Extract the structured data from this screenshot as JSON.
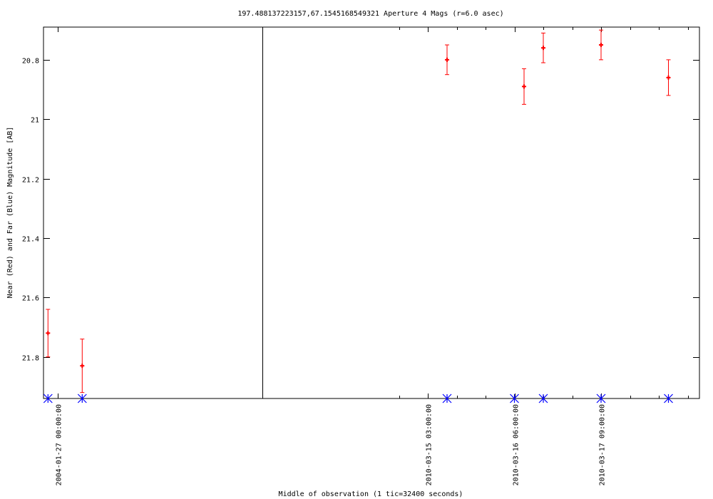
{
  "chart_data": {
    "type": "scatter",
    "title": "197.488137223157,67.1545168549321   Aperture 4 Mags (r=6.0 asec)",
    "xlabel": "Middle of observation (1 tic=32400 seconds)",
    "ylabel": "Near (Red) and Far (Blue) Magnitude [AB]",
    "y_inverted": true,
    "ylim": [
      20.69,
      21.94
    ],
    "yticks": [
      20.8,
      21,
      21.2,
      21.4,
      21.6,
      21.8
    ],
    "ytick_labels": [
      "20.8",
      "21",
      "21.2",
      "21.4",
      "21.6",
      "21.8"
    ],
    "x_axis_break": true,
    "xticks": [
      "2004-01-27 00:00:00",
      "2010-03-15 03:00:00",
      "2010-03-16 06:00:00",
      "2010-03-17 09:00:00"
    ],
    "colors": {
      "near": "#ff0000",
      "far": "#0000ff",
      "axis": "#000000"
    },
    "series": [
      {
        "name": "Near (Red)",
        "color": "#ff0000",
        "marker": "plus-with-errorbars",
        "points": [
          {
            "x": "2004-01-26 12:00:00",
            "y": 21.72,
            "err": 0.08
          },
          {
            "x": "2004-01-28 06:00:00",
            "y": 21.83,
            "err": 0.09
          },
          {
            "x": "2010-03-15 09:00:00",
            "y": 20.8,
            "err": 0.05
          },
          {
            "x": "2010-03-16 09:00:00",
            "y": 20.89,
            "err": 0.06
          },
          {
            "x": "2010-03-16 15:00:00",
            "y": 20.76,
            "err": 0.05
          },
          {
            "x": "2010-03-17 09:00:00",
            "y": 20.75,
            "err": 0.05
          },
          {
            "x": "2010-03-18 06:00:00",
            "y": 20.86,
            "err": 0.06
          }
        ]
      },
      {
        "name": "Far (Blue)",
        "color": "#0000ff",
        "marker": "asterisk",
        "points": [
          {
            "x": "2004-01-26 12:00:00",
            "y": 21.94
          },
          {
            "x": "2004-01-28 06:00:00",
            "y": 21.94
          },
          {
            "x": "2010-03-15 09:00:00",
            "y": 21.94
          },
          {
            "x": "2010-03-16 06:00:00",
            "y": 21.94
          },
          {
            "x": "2010-03-16 15:00:00",
            "y": 21.94
          },
          {
            "x": "2010-03-17 09:00:00",
            "y": 21.94
          },
          {
            "x": "2010-03-18 06:00:00",
            "y": 21.94
          }
        ]
      }
    ]
  }
}
